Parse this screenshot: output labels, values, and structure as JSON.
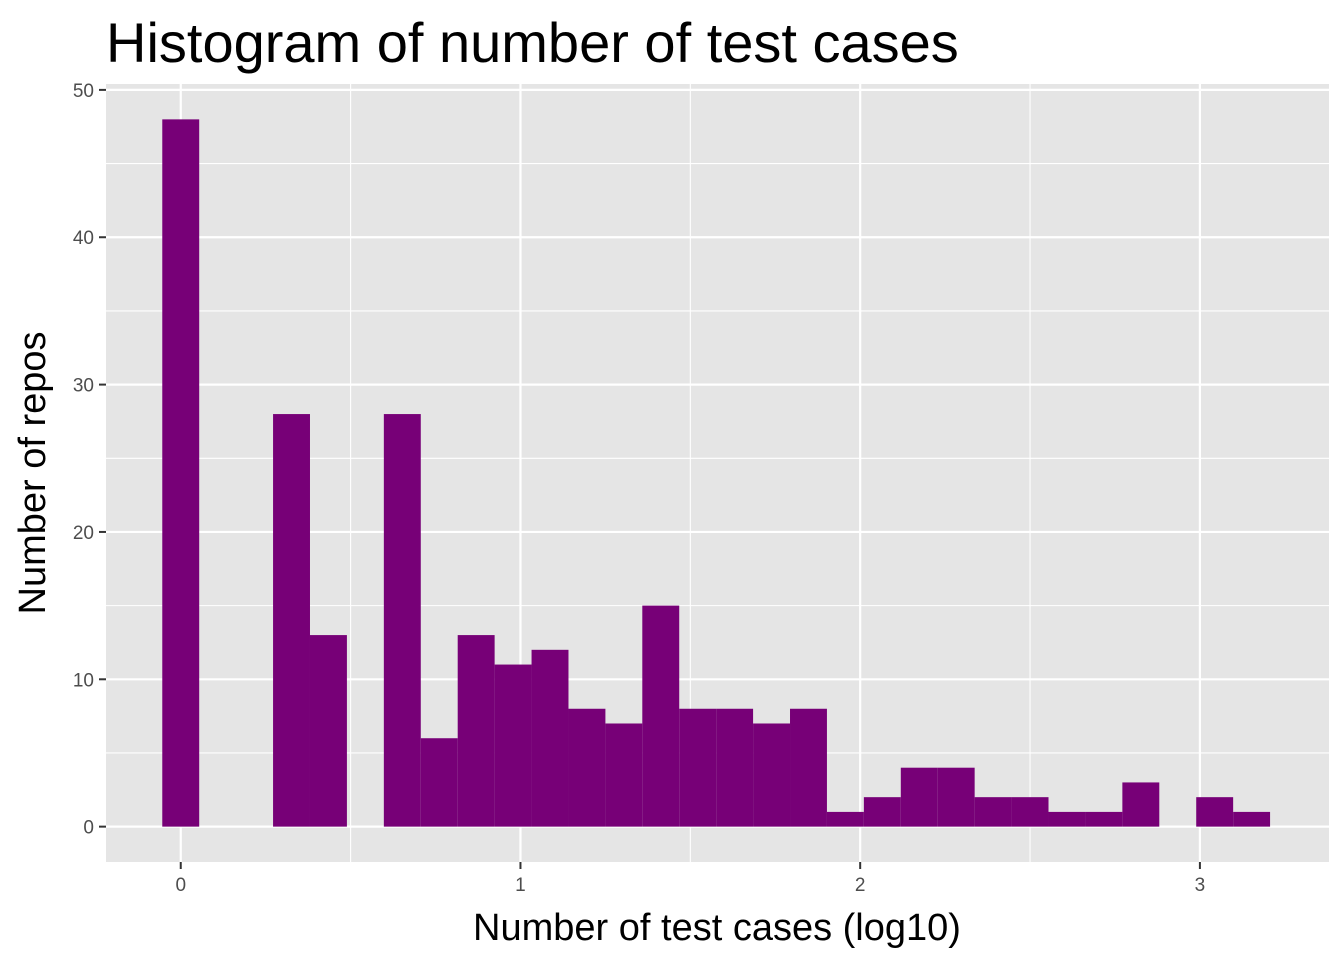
{
  "chart_data": {
    "type": "bar",
    "title": "Histogram of number of test cases",
    "xlabel": "Number of test cases (log10)",
    "ylabel": "Number of repos",
    "xlim": [
      -0.22,
      3.38
    ],
    "ylim": [
      -2.4,
      50.4
    ],
    "x_ticks": [
      0,
      1,
      2,
      3
    ],
    "y_ticks": [
      0,
      10,
      20,
      30,
      40,
      50
    ],
    "bin_width": 0.1087,
    "bins": [
      {
        "x": 0.0,
        "count": 48
      },
      {
        "x": 0.1087,
        "count": 0
      },
      {
        "x": 0.2174,
        "count": 0
      },
      {
        "x": 0.3261,
        "count": 28
      },
      {
        "x": 0.4348,
        "count": 13
      },
      {
        "x": 0.5435,
        "count": 0
      },
      {
        "x": 0.6522,
        "count": 28
      },
      {
        "x": 0.7609,
        "count": 6
      },
      {
        "x": 0.8696,
        "count": 13
      },
      {
        "x": 0.9783,
        "count": 11
      },
      {
        "x": 1.087,
        "count": 12
      },
      {
        "x": 1.1957,
        "count": 8
      },
      {
        "x": 1.3043,
        "count": 7
      },
      {
        "x": 1.413,
        "count": 15
      },
      {
        "x": 1.5217,
        "count": 8
      },
      {
        "x": 1.6304,
        "count": 8
      },
      {
        "x": 1.7391,
        "count": 7
      },
      {
        "x": 1.8478,
        "count": 8
      },
      {
        "x": 1.9565,
        "count": 1
      },
      {
        "x": 2.0652,
        "count": 2
      },
      {
        "x": 2.1739,
        "count": 4
      },
      {
        "x": 2.2826,
        "count": 4
      },
      {
        "x": 2.3913,
        "count": 2
      },
      {
        "x": 2.5,
        "count": 2
      },
      {
        "x": 2.6087,
        "count": 1
      },
      {
        "x": 2.7174,
        "count": 1
      },
      {
        "x": 2.8261,
        "count": 3
      },
      {
        "x": 2.9348,
        "count": 0
      },
      {
        "x": 3.0435,
        "count": 2
      },
      {
        "x": 3.1522,
        "count": 1
      }
    ],
    "grid": true,
    "colors": {
      "bar": "#770077",
      "panel": "#e5e5e5",
      "gridline": "#ffffff",
      "tick_text": "#4d4d4d",
      "tick_mark": "#333333"
    }
  }
}
